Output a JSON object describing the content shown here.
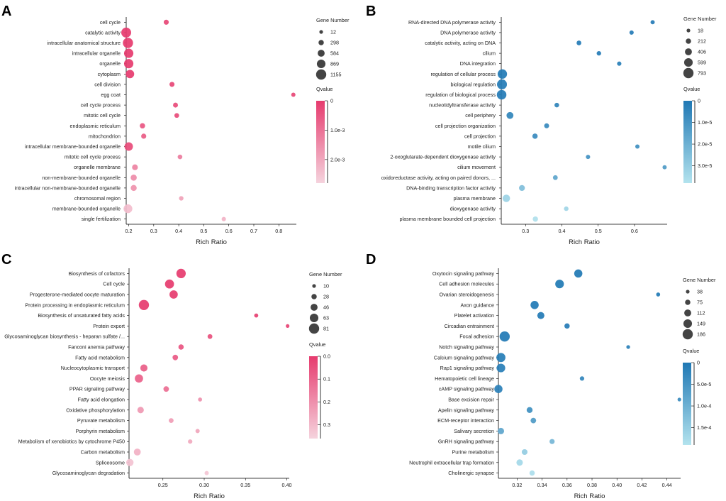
{
  "chart_data": [
    {
      "panel": "A",
      "type": "scatter",
      "xlabel": "Rich Ratio",
      "xlim": [
        0.19,
        0.87
      ],
      "xticks": [
        "0.2",
        "0.3",
        "0.4",
        "0.5",
        "0.6",
        "0.7",
        "0.8"
      ],
      "xtick_values": [
        0.2,
        0.3,
        0.4,
        0.5,
        0.6,
        0.7,
        0.8
      ],
      "size_legend": {
        "title": "Gene Number",
        "values": [
          12,
          298,
          584,
          869,
          1155
        ],
        "labels": [
          "12",
          "298",
          "584",
          "869",
          "1155"
        ]
      },
      "color_legend": {
        "title": "Qvalue",
        "max": 0.0028,
        "ticks": [
          0,
          0.001,
          0.002
        ],
        "labels": [
          "0",
          "1.0e-3",
          "2.0e-3"
        ]
      },
      "color_scheme": {
        "dark": "#e63b6e",
        "light": "#f5d3dd"
      },
      "points": [
        {
          "label": "cell cycle",
          "x": 0.35,
          "size": 250,
          "q": 0.0002
        },
        {
          "label": "catalytic activity",
          "x": 0.19,
          "size": 1100,
          "q": 0.0
        },
        {
          "label": "intracellular anatomical structure",
          "x": 0.197,
          "size": 1155,
          "q": 0.0
        },
        {
          "label": "intracellular organelle",
          "x": 0.2,
          "size": 1000,
          "q": 0.0
        },
        {
          "label": "organelle",
          "x": 0.2,
          "size": 1000,
          "q": 0.0
        },
        {
          "label": "cytoplasm",
          "x": 0.205,
          "size": 850,
          "q": 0.0
        },
        {
          "label": "cell division",
          "x": 0.373,
          "size": 250,
          "q": 0.0002
        },
        {
          "label": "egg coat",
          "x": 0.858,
          "size": 110,
          "q": 0.0002
        },
        {
          "label": "cell cycle process",
          "x": 0.387,
          "size": 230,
          "q": 0.0003
        },
        {
          "label": "mitotic cell cycle",
          "x": 0.392,
          "size": 200,
          "q": 0.0003
        },
        {
          "label": "endoplasmic reticulum",
          "x": 0.255,
          "size": 300,
          "q": 0.0005
        },
        {
          "label": "mitochondrion",
          "x": 0.26,
          "size": 260,
          "q": 0.0006
        },
        {
          "label": "intracellular membrane-bounded organelle",
          "x": 0.2,
          "size": 850,
          "q": 0.0003
        },
        {
          "label": "mitotic cell cycle process",
          "x": 0.405,
          "size": 180,
          "q": 0.0012
        },
        {
          "label": "organelle membrane",
          "x": 0.225,
          "size": 380,
          "q": 0.0013
        },
        {
          "label": "non-membrane-bounded organelle",
          "x": 0.22,
          "size": 440,
          "q": 0.0015
        },
        {
          "label": "intracellular non-membrane-bounded organelle",
          "x": 0.22,
          "size": 420,
          "q": 0.0016
        },
        {
          "label": "chromosomal region",
          "x": 0.41,
          "size": 150,
          "q": 0.0019
        },
        {
          "label": "membrane-bounded organelle",
          "x": 0.197,
          "size": 900,
          "q": 0.0024
        },
        {
          "label": "single fertilization",
          "x": 0.58,
          "size": 120,
          "q": 0.0022
        }
      ]
    },
    {
      "panel": "B",
      "type": "scatter",
      "xlabel": "Rich Ratio",
      "xlim": [
        0.233,
        0.69
      ],
      "xticks": [
        "0.3",
        "0.4",
        "0.5",
        "0.6"
      ],
      "xtick_values": [
        0.3,
        0.4,
        0.5,
        0.6
      ],
      "size_legend": {
        "title": "Gene Number",
        "values": [
          18,
          212,
          406,
          599,
          793
        ],
        "labels": [
          "18",
          "212",
          "406",
          "599",
          "793"
        ]
      },
      "color_legend": {
        "title": "Qvalue",
        "max": 3.8e-05,
        "ticks": [
          0,
          1e-05,
          2e-05,
          3e-05
        ],
        "labels": [
          "0",
          "1.0e-5",
          "2.0e-5",
          "3.0e-5"
        ]
      },
      "color_scheme": {
        "dark": "#1f78b4",
        "light": "#b3e3ee"
      },
      "points": [
        {
          "label": "RNA-directed DNA polymerase activity",
          "x": 0.65,
          "size": 80,
          "q": 1.2e-06
        },
        {
          "label": "DNA polymerase activity",
          "x": 0.592,
          "size": 90,
          "q": 1.2e-06
        },
        {
          "label": "catalytic activity, acting on DNA",
          "x": 0.447,
          "size": 140,
          "q": 1e-06
        },
        {
          "label": "cilium",
          "x": 0.502,
          "size": 110,
          "q": 1.2e-06
        },
        {
          "label": "DNA integration",
          "x": 0.558,
          "size": 90,
          "q": 2e-06
        },
        {
          "label": "regulation of cellular process",
          "x": 0.236,
          "size": 700,
          "q": 5e-07
        },
        {
          "label": "biological regulation",
          "x": 0.235,
          "size": 760,
          "q": 1e-06
        },
        {
          "label": "regulation of biological process",
          "x": 0.234,
          "size": 720,
          "q": 1e-06
        },
        {
          "label": "nucleotidyltransferase activity",
          "x": 0.386,
          "size": 130,
          "q": 4e-06
        },
        {
          "label": "cell periphery",
          "x": 0.257,
          "size": 400,
          "q": 4.5e-06
        },
        {
          "label": "cell projection organization",
          "x": 0.358,
          "size": 170,
          "q": 6e-06
        },
        {
          "label": "cell projection",
          "x": 0.326,
          "size": 210,
          "q": 6.5e-06
        },
        {
          "label": "motile cilium",
          "x": 0.608,
          "size": 90,
          "q": 8e-06
        },
        {
          "label": "2-oxoglutarate-dependent dioxygenase activity",
          "x": 0.472,
          "size": 90,
          "q": 9e-06
        },
        {
          "label": "cilium movement",
          "x": 0.683,
          "size": 80,
          "q": 1.2e-05
        },
        {
          "label": "oxidoreductase activity, acting on paired donors, ...",
          "x": 0.382,
          "size": 150,
          "q": 1.6e-05
        },
        {
          "label": "DNA-binding transcription factor activity",
          "x": 0.29,
          "size": 280,
          "q": 2.5e-05
        },
        {
          "label": "plasma membrane",
          "x": 0.247,
          "size": 460,
          "q": 3.2e-05
        },
        {
          "label": "dioxygenase activity",
          "x": 0.412,
          "size": 120,
          "q": 3.3e-05
        },
        {
          "label": "plasma membrane bounded cell projection",
          "x": 0.327,
          "size": 210,
          "q": 3.7e-05
        }
      ]
    },
    {
      "panel": "C",
      "type": "scatter",
      "xlabel": "Rich Ratio",
      "xlim": [
        0.209,
        0.403
      ],
      "xticks": [
        "0.25",
        "0.30",
        "0.35",
        "0.40"
      ],
      "xtick_values": [
        0.25,
        0.3,
        0.35,
        0.4
      ],
      "size_legend": {
        "title": "Gene Number",
        "values": [
          10,
          28,
          46,
          63,
          81
        ],
        "labels": [
          "10",
          "28",
          "46",
          "63",
          "81"
        ]
      },
      "color_legend": {
        "title": "Qvalue",
        "max": 0.36,
        "ticks": [
          0.0,
          0.1,
          0.2,
          0.3
        ],
        "labels": [
          "0.0",
          "0.1",
          "0.2",
          "0.3"
        ]
      },
      "color_scheme": {
        "dark": "#e63b6e",
        "light": "#f5d3dd"
      },
      "points": [
        {
          "label": "Biosynthesis of cofactors",
          "x": 0.272,
          "size": 72,
          "q": 0.0
        },
        {
          "label": "Cell cycle",
          "x": 0.258,
          "size": 68,
          "q": 0.001
        },
        {
          "label": "Progesterone-mediated oocyte maturation",
          "x": 0.263,
          "size": 60,
          "q": 0.002
        },
        {
          "label": "Protein processing in endoplasmic reticulum",
          "x": 0.227,
          "size": 81,
          "q": 0.003
        },
        {
          "label": "Biosynthesis of unsaturated fatty acids",
          "x": 0.363,
          "size": 14,
          "q": 0.01
        },
        {
          "label": "Protein export",
          "x": 0.401,
          "size": 10,
          "q": 0.02
        },
        {
          "label": "Glycosaminoglycan biosynthesis - heparan sulfate /...",
          "x": 0.307,
          "size": 22,
          "q": 0.05
        },
        {
          "label": "Fanconi anemia pathway",
          "x": 0.272,
          "size": 28,
          "q": 0.06
        },
        {
          "label": "Fatty acid metabolism",
          "x": 0.265,
          "size": 30,
          "q": 0.07
        },
        {
          "label": "Nucleocytoplasmic transport",
          "x": 0.227,
          "size": 48,
          "q": 0.08
        },
        {
          "label": "Oocyte meiosis",
          "x": 0.221,
          "size": 60,
          "q": 0.09
        },
        {
          "label": "PPAR signaling pathway",
          "x": 0.254,
          "size": 30,
          "q": 0.12
        },
        {
          "label": "Fatty acid elongation",
          "x": 0.295,
          "size": 14,
          "q": 0.2
        },
        {
          "label": "Oxidative phosphorylation",
          "x": 0.223,
          "size": 40,
          "q": 0.22
        },
        {
          "label": "Pyruvate metabolism",
          "x": 0.26,
          "size": 22,
          "q": 0.23
        },
        {
          "label": "Porphyrin metabolism",
          "x": 0.292,
          "size": 16,
          "q": 0.25
        },
        {
          "label": "Metabolism of xenobiotics by cytochrome P450",
          "x": 0.283,
          "size": 18,
          "q": 0.26
        },
        {
          "label": "Carbon metabolism",
          "x": 0.219,
          "size": 45,
          "q": 0.28
        },
        {
          "label": "Spliceosome",
          "x": 0.21,
          "size": 50,
          "q": 0.32
        },
        {
          "label": "Glycosaminoglycan degradation",
          "x": 0.303,
          "size": 16,
          "q": 0.33
        }
      ]
    },
    {
      "panel": "D",
      "type": "scatter",
      "xlabel": "Rich Ratio",
      "xlim": [
        0.305,
        0.451
      ],
      "xticks": [
        "0.32",
        "0.34",
        "0.36",
        "0.38",
        "0.40",
        "0.42",
        "0.44"
      ],
      "xtick_values": [
        0.32,
        0.34,
        0.36,
        0.38,
        0.4,
        0.42,
        0.44
      ],
      "size_legend": {
        "title": "Gene Number",
        "values": [
          38,
          75,
          112,
          149,
          186
        ],
        "labels": [
          "38",
          "75",
          "112",
          "149",
          "186"
        ]
      },
      "color_legend": {
        "title": "Qvalue",
        "max": 0.00019,
        "ticks": [
          0,
          5e-05,
          0.0001,
          0.00015
        ],
        "labels": [
          "0",
          "5.0e-5",
          "1.0e-4",
          "1.5e-4"
        ]
      },
      "color_scheme": {
        "dark": "#1f78b4",
        "light": "#b3e3ee"
      },
      "points": [
        {
          "label": "Oxytocin signaling pathway",
          "x": 0.369,
          "size": 140,
          "q": 5e-07
        },
        {
          "label": "Cell adhesion molecules",
          "x": 0.354,
          "size": 150,
          "q": 1e-06
        },
        {
          "label": "Ovarian steroidogenesis",
          "x": 0.433,
          "size": 45,
          "q": 2e-06
        },
        {
          "label": "Axon guidance",
          "x": 0.334,
          "size": 140,
          "q": 2e-06
        },
        {
          "label": "Platelet activation",
          "x": 0.339,
          "size": 115,
          "q": 4e-06
        },
        {
          "label": "Circadian entrainment",
          "x": 0.36,
          "size": 75,
          "q": 6e-06
        },
        {
          "label": "Focal adhesion",
          "x": 0.31,
          "size": 186,
          "q": 4e-06
        },
        {
          "label": "Notch signaling pathway",
          "x": 0.409,
          "size": 40,
          "q": 1.2e-05
        },
        {
          "label": "Calcium signaling pathway",
          "x": 0.307,
          "size": 160,
          "q": 8e-06
        },
        {
          "label": "Rap1 signaling pathway",
          "x": 0.307,
          "size": 150,
          "q": 1e-05
        },
        {
          "label": "Hematopoietic cell lineage",
          "x": 0.372,
          "size": 55,
          "q": 2.5e-05
        },
        {
          "label": "cAMP signaling pathway",
          "x": 0.305,
          "size": 140,
          "q": 1.4e-05
        },
        {
          "label": "Base excision repair",
          "x": 0.45,
          "size": 38,
          "q": 3e-05
        },
        {
          "label": "Apelin signaling pathway",
          "x": 0.33,
          "size": 90,
          "q": 4e-05
        },
        {
          "label": "ECM-receptor interaction",
          "x": 0.333,
          "size": 80,
          "q": 6e-05
        },
        {
          "label": "Salivary secretion",
          "x": 0.307,
          "size": 100,
          "q": 8e-05
        },
        {
          "label": "GnRH signaling pathway",
          "x": 0.348,
          "size": 70,
          "q": 0.00011
        },
        {
          "label": "Purine metabolism",
          "x": 0.326,
          "size": 85,
          "q": 0.00015
        },
        {
          "label": "Neutrophil extracellular trap formation",
          "x": 0.322,
          "size": 100,
          "q": 0.00017
        },
        {
          "label": "Cholinergic synapse",
          "x": 0.332,
          "size": 75,
          "q": 0.00018
        }
      ]
    }
  ]
}
